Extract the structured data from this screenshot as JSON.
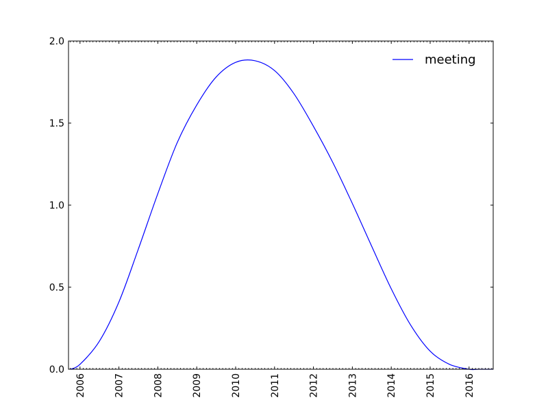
{
  "chart_data": {
    "type": "line",
    "title": "",
    "xlabel": "",
    "ylabel": "",
    "x_ticks": [
      "2006",
      "2007",
      "2008",
      "2009",
      "2010",
      "2011",
      "2012",
      "2013",
      "2014",
      "2015",
      "2016"
    ],
    "xlim": [
      "2005-09-15",
      "2016-08-15"
    ],
    "ylim": [
      0.0,
      2.0
    ],
    "y_ticks": [
      "0.0",
      "0.5",
      "1.0",
      "1.5",
      "2.0"
    ],
    "grid": false,
    "legend_position": "top-right",
    "series": [
      {
        "name": "meeting",
        "color": "#0000ff",
        "x": [
          "2005-10-01",
          "2006-01-01",
          "2006-07-01",
          "2007-01-01",
          "2007-07-01",
          "2008-01-01",
          "2008-07-01",
          "2009-01-01",
          "2009-07-01",
          "2010-01-01",
          "2010-07-01",
          "2011-01-01",
          "2011-07-01",
          "2012-01-01",
          "2012-07-01",
          "2013-01-01",
          "2013-07-01",
          "2014-01-01",
          "2014-07-01",
          "2015-01-01",
          "2015-07-01",
          "2016-01-01",
          "2016-04-01",
          "2016-08-15"
        ],
        "y": [
          0.0,
          0.03,
          0.17,
          0.41,
          0.73,
          1.07,
          1.38,
          1.61,
          1.78,
          1.87,
          1.88,
          1.82,
          1.68,
          1.48,
          1.26,
          1.01,
          0.75,
          0.49,
          0.27,
          0.11,
          0.03,
          0.0,
          0.0,
          0.0
        ]
      }
    ]
  }
}
